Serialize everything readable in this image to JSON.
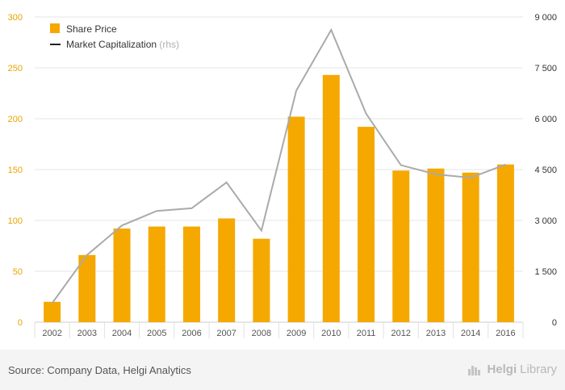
{
  "chart_data": {
    "type": "bar",
    "categories": [
      "2002",
      "2003",
      "2004",
      "2005",
      "2006",
      "2007",
      "2008",
      "2009",
      "2010",
      "2011",
      "2012",
      "2013",
      "2014",
      "2016"
    ],
    "series": [
      {
        "name": "Share Price",
        "type": "bar",
        "axis": "left",
        "color": "#f5a800",
        "values": [
          20,
          66,
          92,
          94,
          94,
          102,
          82,
          202,
          243,
          192,
          149,
          151,
          147,
          155
        ]
      },
      {
        "name": "Market Capitalization",
        "type": "line",
        "axis": "right",
        "color": "#aaaaaa",
        "values": [
          560,
          1980,
          2850,
          3280,
          3360,
          4120,
          2700,
          6830,
          8620,
          6150,
          4630,
          4360,
          4260,
          4650
        ]
      }
    ],
    "legend": {
      "items": [
        {
          "label": "Share Price",
          "suffix": ""
        },
        {
          "label": "Market Capitalization",
          "suffix": "(rhs)"
        }
      ],
      "placement": "top-left"
    },
    "y_left": {
      "ylim": [
        0,
        300
      ],
      "ticks": [
        "0",
        "50",
        "100",
        "150",
        "200",
        "250",
        "300"
      ],
      "tick_color": "#e8a400"
    },
    "y_right": {
      "ylim": [
        0,
        9000
      ],
      "ticks": [
        "0",
        "1 500",
        "3 000",
        "4 500",
        "6 000",
        "7 500",
        "9 000"
      ],
      "tick_color": "#333333"
    },
    "grid": true
  },
  "footer": {
    "source": "Source: Company Data, Helgi Analytics",
    "logo_bold": "Helgi",
    "logo_light": "Library"
  }
}
